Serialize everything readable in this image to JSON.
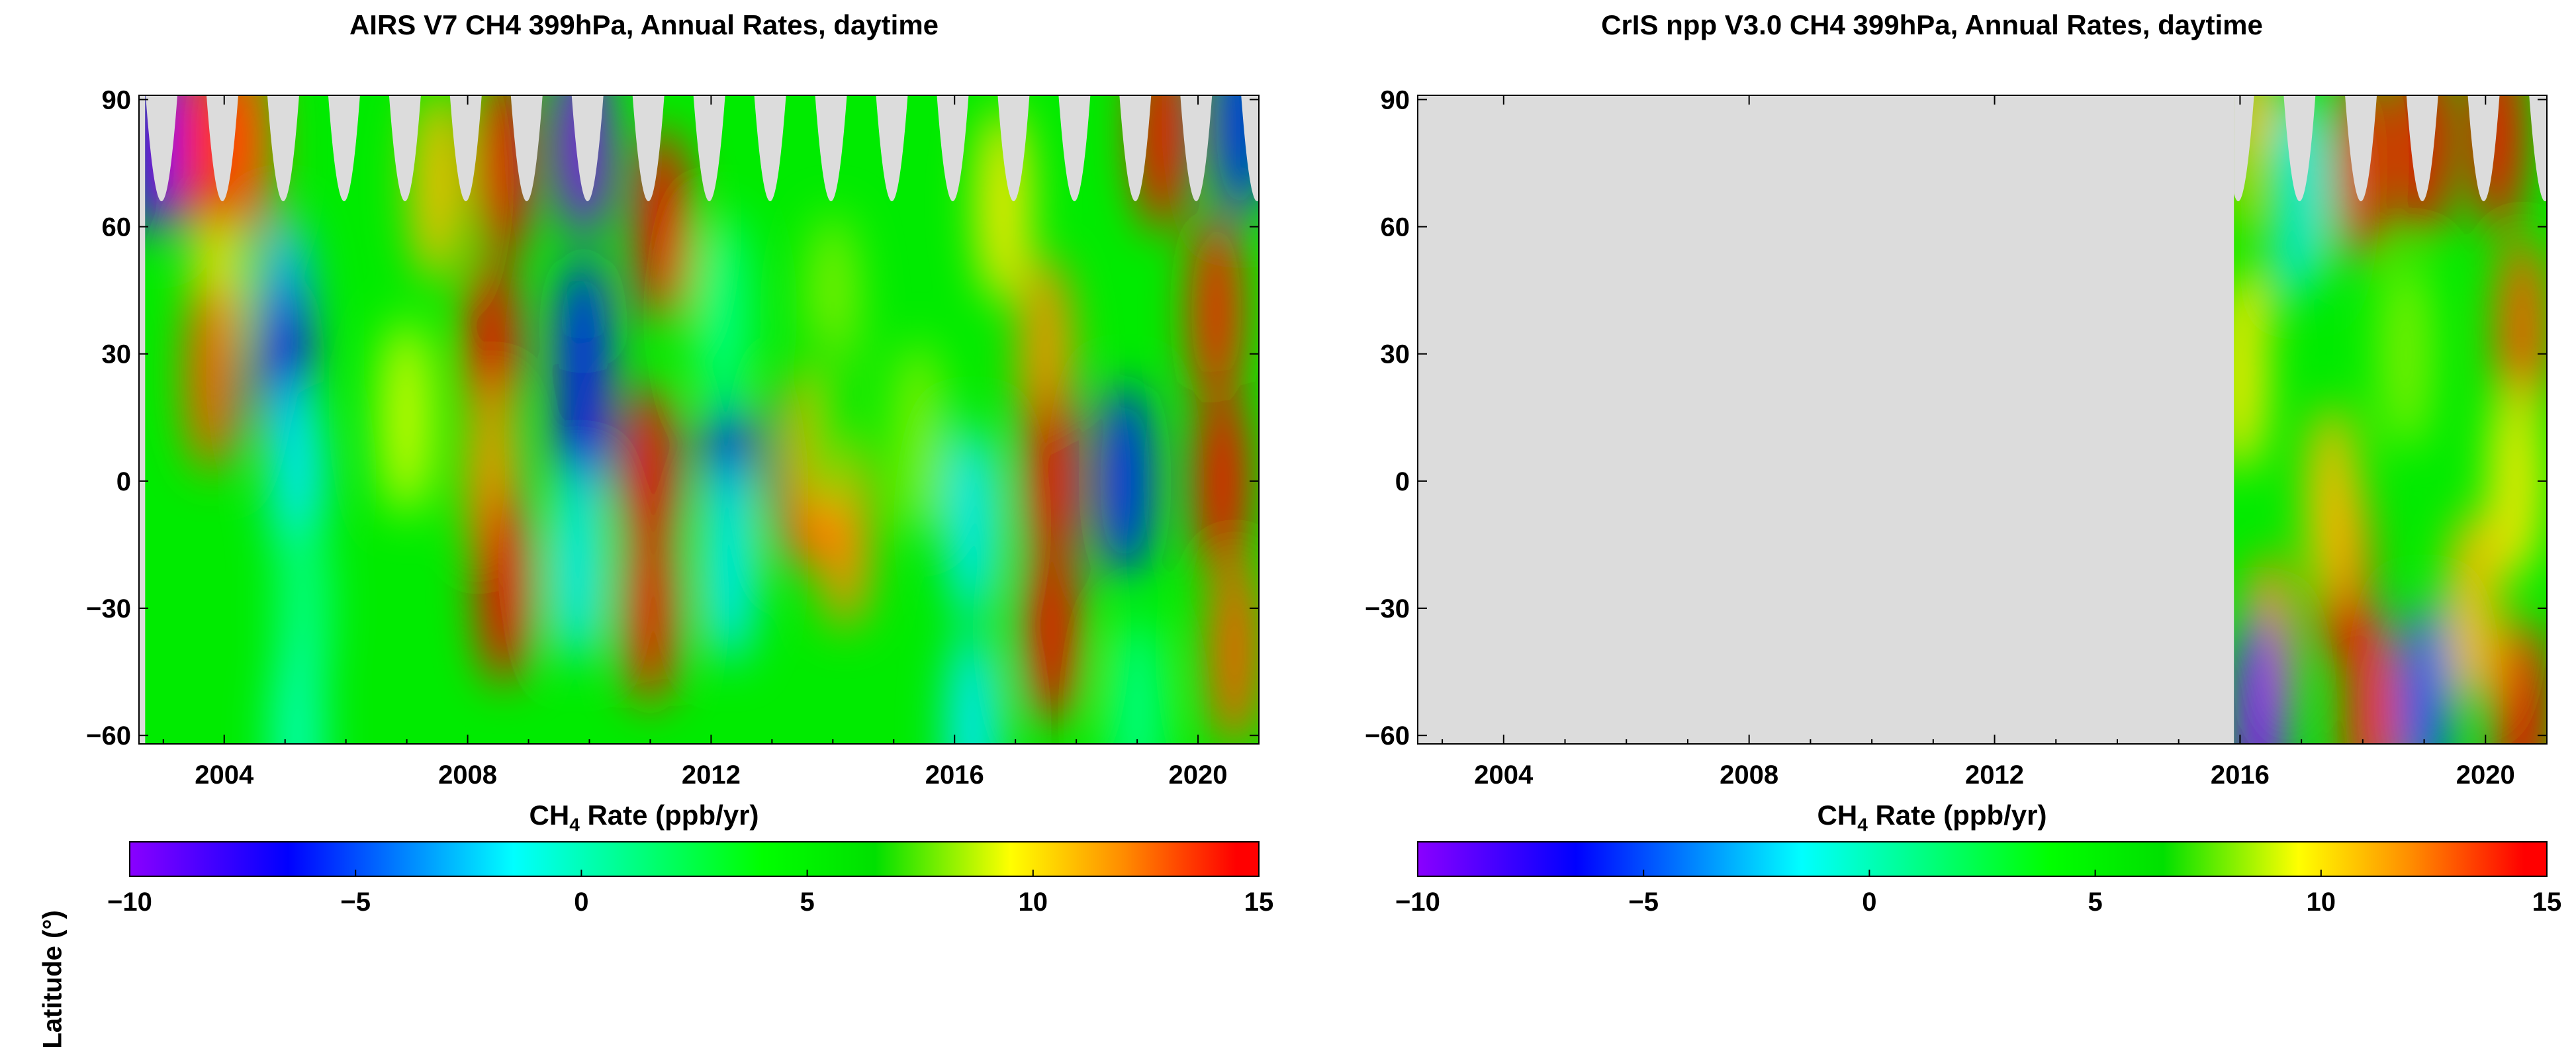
{
  "chart_data": [
    {
      "type": "heatmap",
      "title": "AIRS V7 CH4 399hPa, Annual Rates, daytime",
      "xlabel": "",
      "ylabel": "Latitude (°)",
      "xlim": [
        2002.6,
        2021.0
      ],
      "ylim": [
        -62,
        91
      ],
      "xticks": [
        2004,
        2008,
        2012,
        2016,
        2020
      ],
      "yticks": [
        90,
        60,
        30,
        0,
        -30,
        -60
      ],
      "ytick_labels": [
        "90",
        "60",
        "30",
        "0",
        "−30",
        "−60"
      ],
      "data_start": 2002.7,
      "data_end": 2021.0,
      "blobs": [
        {
          "x": 2003.9,
          "y": 40,
          "v": 10
        },
        {
          "x": 2003.8,
          "y": 25,
          "v": 13
        },
        {
          "x": 2005.0,
          "y": 40,
          "v": -3
        },
        {
          "x": 2005.0,
          "y": 25,
          "v": -7
        },
        {
          "x": 2005.2,
          "y": 0,
          "v": -2
        },
        {
          "x": 2005.3,
          "y": -30,
          "v": 1
        },
        {
          "x": 2005.2,
          "y": -60,
          "v": 0
        },
        {
          "x": 2002.8,
          "y": 80,
          "v": -8
        },
        {
          "x": 2003.6,
          "y": 80,
          "v": 14
        },
        {
          "x": 2004.4,
          "y": 80,
          "v": 13
        },
        {
          "x": 2007.5,
          "y": 70,
          "v": 11
        },
        {
          "x": 2008.6,
          "y": 75,
          "v": 15
        },
        {
          "x": 2008.4,
          "y": 30,
          "v": 15
        },
        {
          "x": 2008.4,
          "y": 0,
          "v": 12
        },
        {
          "x": 2008.6,
          "y": -25,
          "v": 15
        },
        {
          "x": 2007.0,
          "y": 15,
          "v": 9
        },
        {
          "x": 2009.9,
          "y": 80,
          "v": -10
        },
        {
          "x": 2009.9,
          "y": 30,
          "v": -6
        },
        {
          "x": 2009.9,
          "y": 10,
          "v": -7
        },
        {
          "x": 2009.8,
          "y": -20,
          "v": -2
        },
        {
          "x": 2011.2,
          "y": 60,
          "v": 15
        },
        {
          "x": 2011.0,
          "y": 0,
          "v": 15
        },
        {
          "x": 2011.0,
          "y": -30,
          "v": 14
        },
        {
          "x": 2012.3,
          "y": -2,
          "v": -6
        },
        {
          "x": 2012.3,
          "y": -20,
          "v": -2
        },
        {
          "x": 2012.2,
          "y": 40,
          "v": 1
        },
        {
          "x": 2013.5,
          "y": 2,
          "v": 13
        },
        {
          "x": 2014.2,
          "y": -12,
          "v": 12
        },
        {
          "x": 2014.0,
          "y": 40,
          "v": 8
        },
        {
          "x": 2013.9,
          "y": 15,
          "v": 7
        },
        {
          "x": 2015.4,
          "y": 10,
          "v": 8
        },
        {
          "x": 2016.3,
          "y": -10,
          "v": -2
        },
        {
          "x": 2016.3,
          "y": -58,
          "v": -2
        },
        {
          "x": 2016.8,
          "y": 65,
          "v": 10
        },
        {
          "x": 2017.5,
          "y": 30,
          "v": 12
        },
        {
          "x": 2017.6,
          "y": 0,
          "v": 15
        },
        {
          "x": 2017.6,
          "y": -35,
          "v": 15
        },
        {
          "x": 2018.8,
          "y": 0,
          "v": -6
        },
        {
          "x": 2019.0,
          "y": -55,
          "v": 1
        },
        {
          "x": 2019.4,
          "y": 82,
          "v": 15
        },
        {
          "x": 2020.3,
          "y": 40,
          "v": 14
        },
        {
          "x": 2020.4,
          "y": 0,
          "v": 15
        },
        {
          "x": 2020.6,
          "y": -40,
          "v": 13
        },
        {
          "x": 2020.7,
          "y": 85,
          "v": -6
        }
      ]
    },
    {
      "type": "heatmap",
      "title": "CrIS npp V3.0 CH4 399hPa, Annual Rates, daytime",
      "xlabel": "",
      "ylabel": "",
      "xlim": [
        2002.6,
        2021.0
      ],
      "ylim": [
        -62,
        91
      ],
      "xticks": [
        2004,
        2008,
        2012,
        2016,
        2020
      ],
      "yticks": [
        90,
        60,
        30,
        0,
        -30,
        -60
      ],
      "ytick_labels": [
        "90",
        "60",
        "30",
        "0",
        "−30",
        "−60"
      ],
      "data_start": 2015.9,
      "data_end": 2021.0,
      "blobs": [
        {
          "x": 2016.2,
          "y": 80,
          "v": 11
        },
        {
          "x": 2017.0,
          "y": 68,
          "v": -2
        },
        {
          "x": 2016.5,
          "y": 60,
          "v": 6
        },
        {
          "x": 2018.0,
          "y": 75,
          "v": 14
        },
        {
          "x": 2019.0,
          "y": 80,
          "v": 15
        },
        {
          "x": 2020.2,
          "y": 82,
          "v": 15
        },
        {
          "x": 2020.6,
          "y": 35,
          "v": 13
        },
        {
          "x": 2016.0,
          "y": 25,
          "v": 10
        },
        {
          "x": 2017.7,
          "y": -20,
          "v": 15
        },
        {
          "x": 2017.5,
          "y": -5,
          "v": 11
        },
        {
          "x": 2016.5,
          "y": -40,
          "v": 12
        },
        {
          "x": 2016.3,
          "y": -55,
          "v": -8
        },
        {
          "x": 2016.3,
          "y": -60,
          "v": -10
        },
        {
          "x": 2018.1,
          "y": -55,
          "v": 14
        },
        {
          "x": 2019.0,
          "y": -52,
          "v": -5
        },
        {
          "x": 2019.8,
          "y": -30,
          "v": 11
        },
        {
          "x": 2020.6,
          "y": -55,
          "v": 15
        },
        {
          "x": 2020.5,
          "y": 0,
          "v": 10
        },
        {
          "x": 2018.7,
          "y": 30,
          "v": 8
        }
      ]
    }
  ],
  "colorbar": {
    "label_prefix": "CH",
    "label_subscript": "4",
    "label_suffix": " Rate (ppb/yr)",
    "min": -10,
    "max": 15,
    "ticks": [
      -10,
      -5,
      0,
      5,
      10,
      15
    ],
    "tick_labels": [
      "−10",
      "−5",
      "0",
      "5",
      "10",
      "15"
    ],
    "colors": [
      "#8a00ff",
      "#0000ff",
      "#00ffff",
      "#00ff00",
      "#00e000",
      "#ffff00",
      "#ff8c00",
      "#ff0000"
    ],
    "color_stops": [
      -10,
      -6.5,
      -1.5,
      4,
      6.5,
      9.5,
      12,
      14.5
    ]
  },
  "missing_color": "#dcdcdc"
}
